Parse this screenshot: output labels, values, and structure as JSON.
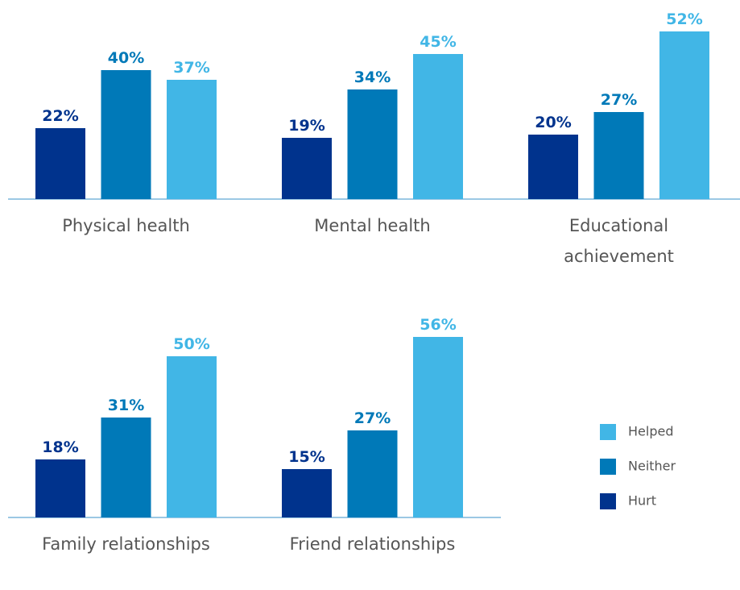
{
  "chart_data": {
    "type": "bar",
    "categories": [
      "Physical health",
      "Mental health",
      "Educational achievement",
      "Family relationships",
      "Friend relationships"
    ],
    "series": [
      {
        "name": "Hurt",
        "color": "#00338d",
        "values": [
          22,
          19,
          20,
          18,
          15
        ],
        "value_labels": [
          "22%",
          "19%",
          "20%",
          "18%",
          "15%"
        ]
      },
      {
        "name": "Neither",
        "color": "#0079b8",
        "values": [
          40,
          34,
          27,
          31,
          27
        ],
        "value_labels": [
          "40%",
          "34%",
          "27%",
          "31%",
          "27%"
        ]
      },
      {
        "name": "Helped",
        "color": "#41b6e6",
        "values": [
          37,
          45,
          52,
          50,
          56
        ],
        "value_labels": [
          "37%",
          "45%",
          "52%",
          "50%",
          "56%"
        ]
      }
    ]
  }
}
